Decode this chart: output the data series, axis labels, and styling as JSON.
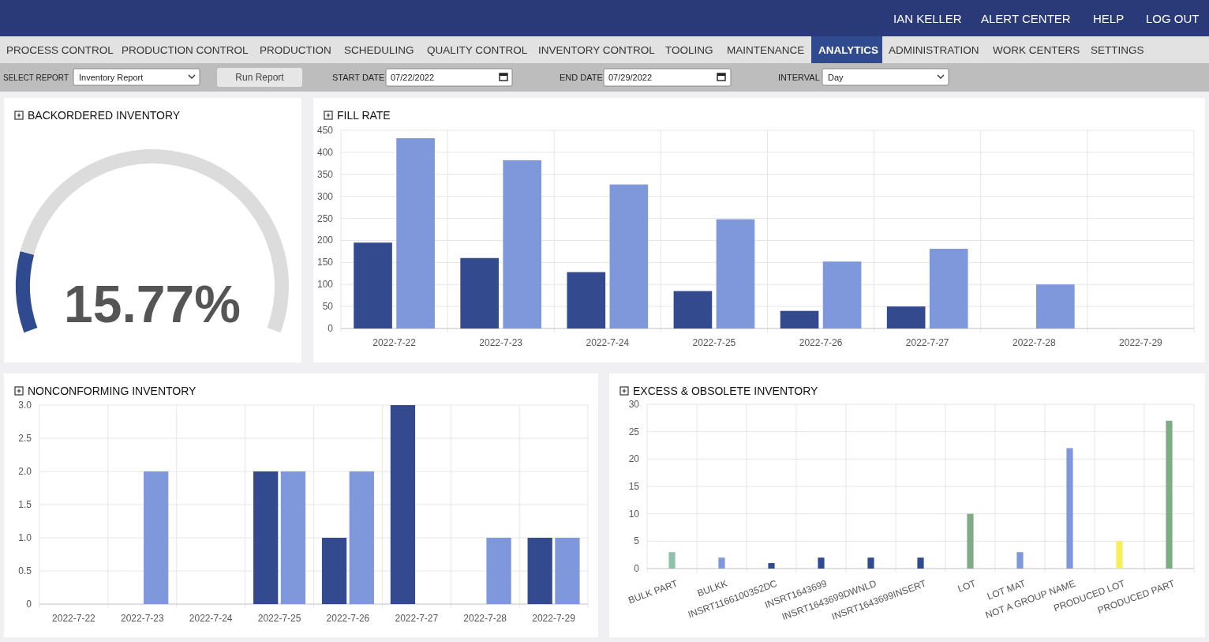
{
  "chart_data": [
    {
      "type": "other",
      "annotations": [
        "IAN KELLER",
        "ALERT CENTER",
        "HELP",
        "LOG OUT",
        "PROCESS CONTROL",
        "PRODUCTION CONTROL",
        "PRODUCTION",
        "SCHEDULING",
        "QUALITY CONTROL",
        "INVENTORY CONTROL",
        "TOOLING",
        "MAINTENANCE",
        "ANALYTICS",
        "ADMINISTRATION",
        "WORK CENTERS",
        "SETTINGS",
        "SELECT REPORT",
        "Inventory Report",
        "Run Report",
        "START DATE",
        "07/22/2022",
        "END DATE",
        "07/29/2022",
        "INTERVAL",
        "Day"
      ]
    },
    {
      "type": "donut",
      "title": "BACKORDERED INVENTORY",
      "categories": [
        null,
        null
      ],
      "values": [
        15.77,
        84.23
      ],
      "colors": [
        "#2f4a8f",
        "#dcdcdc"
      ],
      "annotations": [
        "15.77%"
      ]
    },
    {
      "type": "bar",
      "title": "FILL RATE",
      "categories": [
        "2022-7-22",
        "2022-7-23",
        "2022-7-24",
        "2022-7-25",
        "2022-7-26",
        "2022-7-27",
        "2022-7-28",
        "2022-7-29"
      ],
      "series": [
        {
          "color": "#344a8f",
          "values": [
            195,
            160,
            128,
            85,
            40,
            50,
            null,
            null
          ]
        },
        {
          "color": "#7f97db",
          "values": [
            432,
            382,
            327,
            248,
            152,
            181,
            100,
            null
          ]
        }
      ],
      "ylim": [
        0,
        450
      ],
      "yticks": [
        0,
        50,
        100,
        150,
        200,
        250,
        300,
        350,
        400,
        450
      ],
      "grid": true
    },
    {
      "type": "bar",
      "title": "NONCONFORMING INVENTORY",
      "categories": [
        "2022-7-22",
        "2022-7-23",
        "2022-7-24",
        "2022-7-25",
        "2022-7-26",
        "2022-7-27",
        "2022-7-28",
        "2022-7-29"
      ],
      "series": [
        {
          "color": "#344a8f",
          "values": [
            0,
            0,
            0,
            2,
            1,
            3,
            0,
            1
          ]
        },
        {
          "color": "#7f97db",
          "values": [
            0,
            2,
            0,
            2,
            2,
            0,
            1,
            1
          ]
        }
      ],
      "ylim": [
        0,
        3
      ],
      "yticks": [
        {
          "value": 0,
          "label": "0"
        },
        {
          "value": 0.5,
          "label": "0.5"
        },
        {
          "value": 1,
          "label": "1.0"
        },
        {
          "value": 1.5,
          "label": "1.5"
        },
        {
          "value": 2,
          "label": "2.0"
        },
        {
          "value": 2.5,
          "label": "2.5"
        },
        {
          "value": 3,
          "label": "3.0"
        }
      ],
      "grid": true
    },
    {
      "type": "bar",
      "title": "EXCESS & OBSOLETE INVENTORY",
      "categories": [
        "BULK PART",
        "BULKK",
        "INSRT1166100352DC",
        "INSRT1643699",
        "INSRT1643699DWNLD",
        "INSRT1643699INSERT",
        "LOT",
        "LOT MAT",
        "NOT A GROUP NAME",
        "PRODUCED LOT",
        "PRODUCED PART"
      ],
      "values": [
        3,
        2,
        1,
        2,
        2,
        2,
        10,
        3,
        22,
        5,
        27
      ],
      "colors": [
        "#8dc3a7",
        "#7f97db",
        "#2f4a8f",
        "#2f4a8f",
        "#2f4a8f",
        "#2f4a8f",
        "#7fab86",
        "#7f97db",
        "#7f97db",
        "#f7ef5a",
        "#7fab86"
      ],
      "ylim": [
        0,
        30
      ],
      "yticks": [
        0,
        5,
        10,
        15,
        20,
        25,
        30
      ],
      "grid": true
    }
  ]
}
